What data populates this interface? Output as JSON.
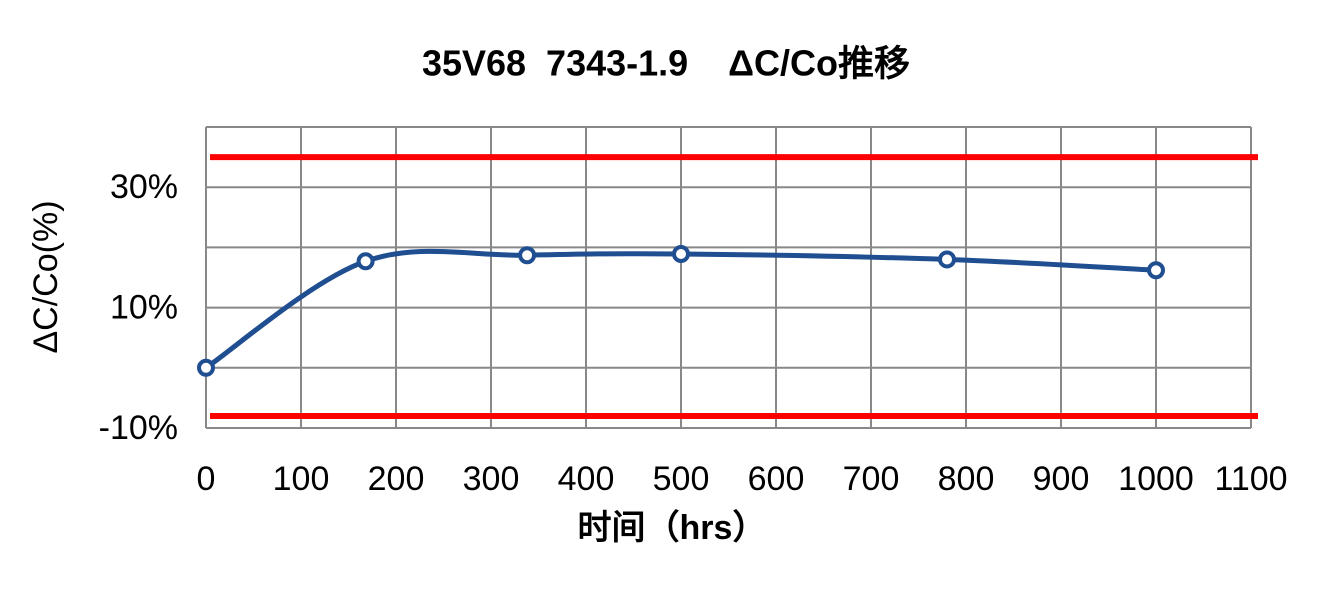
{
  "chart_data": {
    "type": "line",
    "title": "35V68  7343-1.9    ΔC/Co推移",
    "x_label": "时间（hrs）",
    "y_label": "ΔC/Co(%)",
    "xlim": [
      0,
      1100
    ],
    "xticks": [
      0,
      100,
      200,
      300,
      400,
      500,
      600,
      700,
      800,
      900,
      1000,
      1100
    ],
    "ylim": [
      -10,
      40
    ],
    "yticks": [
      {
        "value": -10,
        "label": "-10%"
      },
      {
        "value": 10,
        "label": "10%"
      },
      {
        "value": 30,
        "label": "30%"
      }
    ],
    "ygrid": [
      -10,
      0,
      10,
      20,
      30,
      40
    ],
    "grid": true,
    "limits": [
      {
        "value": 35,
        "color": "#ff0000"
      },
      {
        "value": -8,
        "color": "#ff0000"
      }
    ],
    "series": [
      {
        "color": "#1f4e91",
        "x": [
          0,
          168,
          338,
          500,
          780,
          1000
        ],
        "values": [
          0,
          17.7,
          18.7,
          18.9,
          18.0,
          16.2
        ]
      }
    ]
  }
}
